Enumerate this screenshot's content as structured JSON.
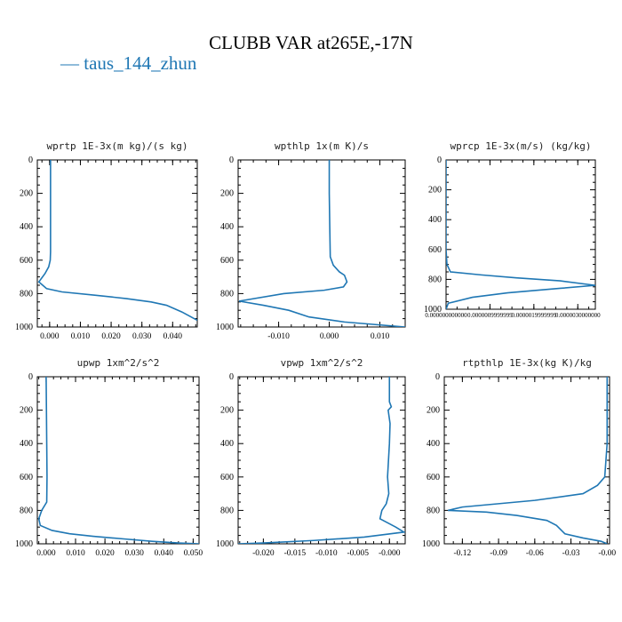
{
  "figure": {
    "title": "CLUBB VAR at265E,-17N",
    "legend": "taus_144_zhun",
    "line_color": "#1f77b4"
  },
  "chart_data": [
    {
      "type": "line",
      "title": "wprtp  1E-3x(m kg)/(s kg)",
      "xlim": [
        -0.004,
        0.048
      ],
      "ylim": [
        1000,
        0
      ],
      "xticks": [
        "0.000",
        "0.010",
        "0.020",
        "0.030",
        "0.040"
      ],
      "xtick_values": [
        0.0,
        0.01,
        0.02,
        0.03,
        0.04
      ],
      "yticks": [
        "0",
        "200",
        "400",
        "600",
        "800",
        "1000"
      ],
      "ytick_values": [
        0,
        200,
        400,
        600,
        800,
        1000
      ],
      "series": [
        {
          "x": [
            0.0003,
            0.0003,
            0.0003,
            0.0003,
            0.0002,
            -0.0003,
            -0.0015,
            -0.0035,
            -0.001,
            0.004,
            0.015,
            0.025,
            0.033,
            0.038,
            0.043,
            0.046,
            0.048
          ],
          "y": [
            0,
            200,
            400,
            550,
            600,
            640,
            680,
            730,
            770,
            790,
            810,
            830,
            850,
            870,
            910,
            940,
            960
          ]
        }
      ]
    },
    {
      "type": "line",
      "title": "wpthlp  1x(m K)/s",
      "xlim": [
        -0.018,
        0.015
      ],
      "ylim": [
        1000,
        0
      ],
      "xticks": [
        "-0.010",
        "0.000",
        "0.010"
      ],
      "xtick_values": [
        -0.01,
        0.0,
        0.01
      ],
      "yticks": [
        "0",
        "200",
        "400",
        "600",
        "800",
        "1000"
      ],
      "ytick_values": [
        0,
        200,
        400,
        600,
        800,
        1000
      ],
      "series": [
        {
          "x": [
            0.0,
            0.0,
            0.0001,
            0.0002,
            0.0008,
            0.002,
            0.003,
            0.0035,
            0.0028,
            -0.001,
            -0.009,
            -0.0178,
            -0.013,
            -0.008,
            -0.004,
            0.003,
            0.015
          ],
          "y": [
            0,
            200,
            400,
            580,
            630,
            670,
            690,
            730,
            760,
            780,
            800,
            845,
            870,
            900,
            940,
            970,
            1000
          ]
        }
      ]
    },
    {
      "type": "line",
      "title": "wprcp  1E-3x(m/s) (kg/kg)",
      "xlim": [
        0.0,
        3.4e-06
      ],
      "ylim": [
        1000,
        0
      ],
      "xticks": [
        "0.000000000000",
        "0.0000009999999",
        "0.0000019999999",
        "0.0000030000000"
      ],
      "xtick_values": [
        0.0,
        1e-06,
        2e-06,
        3e-06
      ],
      "yticks": [
        "0",
        "200",
        "400",
        "600",
        "800",
        "1000"
      ],
      "ytick_values": [
        0,
        200,
        400,
        600,
        800,
        1000
      ],
      "series": [
        {
          "x": [
            0.0,
            0.0,
            0.0,
            0.0,
            2e-08,
            1e-07,
            8e-07,
            1.6e-06,
            2.6e-06,
            3.4e-06,
            2.6e-06,
            1.4e-06,
            6e-07,
            5e-08,
            0.0
          ],
          "y": [
            0,
            200,
            400,
            600,
            700,
            750,
            770,
            790,
            810,
            840,
            860,
            890,
            920,
            960,
            1000
          ]
        }
      ]
    },
    {
      "type": "line",
      "title": "upwp  1xm^2/s^2",
      "xlim": [
        -0.003,
        0.052
      ],
      "ylim": [
        1000,
        0
      ],
      "xticks": [
        "0.000",
        "0.010",
        "0.020",
        "0.030",
        "0.040",
        "0.050"
      ],
      "xtick_values": [
        0.0,
        0.01,
        0.02,
        0.03,
        0.04,
        0.05
      ],
      "yticks": [
        "0",
        "200",
        "400",
        "600",
        "800",
        "1000"
      ],
      "ytick_values": [
        0,
        200,
        400,
        600,
        800,
        1000
      ],
      "series": [
        {
          "x": [
            0.0,
            0.0001,
            0.0002,
            0.0003,
            0.0002,
            -0.0015,
            -0.0025,
            -0.002,
            0.002,
            0.008,
            0.016,
            0.026,
            0.036,
            0.045,
            0.052
          ],
          "y": [
            0,
            200,
            400,
            600,
            750,
            800,
            850,
            890,
            920,
            940,
            955,
            970,
            985,
            995,
            1000
          ]
        }
      ]
    },
    {
      "type": "line",
      "title": "vpwp  1xm^2/s^2",
      "xlim": [
        -0.024,
        0.0025
      ],
      "ylim": [
        1000,
        0
      ],
      "xticks": [
        "-0.020",
        "-0.015",
        "-0.010",
        "-0.005",
        "-0.000"
      ],
      "xtick_values": [
        -0.02,
        -0.015,
        -0.01,
        -0.005,
        0.0
      ],
      "yticks": [
        "0",
        "200",
        "400",
        "600",
        "800",
        "1000"
      ],
      "ytick_values": [
        0,
        200,
        400,
        600,
        800,
        1000
      ],
      "series": [
        {
          "x": [
            0.0,
            0.0,
            0.0003,
            -0.0002,
            0.0001,
            0.0,
            -0.0003,
            -0.0001,
            -0.0005,
            -0.0012,
            -0.0015,
            -0.0005,
            0.001,
            0.0023,
            -0.004,
            -0.012,
            -0.02,
            -0.024
          ],
          "y": [
            0,
            150,
            180,
            200,
            280,
            400,
            600,
            700,
            760,
            800,
            850,
            870,
            900,
            930,
            960,
            980,
            995,
            1000
          ]
        }
      ]
    },
    {
      "type": "line",
      "title": "rtpthlp  1E-3x(kg K)/kg",
      "xlim": [
        -0.135,
        0.002
      ],
      "ylim": [
        1000,
        0
      ],
      "xticks": [
        "-0.12",
        "-0.09",
        "-0.06",
        "-0.03",
        "-0.00"
      ],
      "xtick_values": [
        -0.12,
        -0.09,
        -0.06,
        -0.03,
        0.0
      ],
      "yticks": [
        "0",
        "200",
        "400",
        "600",
        "800",
        "1000"
      ],
      "ytick_values": [
        0,
        200,
        400,
        600,
        800,
        1000
      ],
      "series": [
        {
          "x": [
            0.0,
            0.0,
            0.0,
            -0.002,
            -0.008,
            -0.02,
            -0.06,
            -0.12,
            -0.132,
            -0.1,
            -0.075,
            -0.05,
            -0.042,
            -0.035,
            -0.02,
            -0.005,
            0.0
          ],
          "y": [
            0,
            200,
            400,
            600,
            650,
            700,
            740,
            780,
            800,
            810,
            830,
            860,
            890,
            940,
            965,
            985,
            1000
          ]
        }
      ]
    }
  ]
}
